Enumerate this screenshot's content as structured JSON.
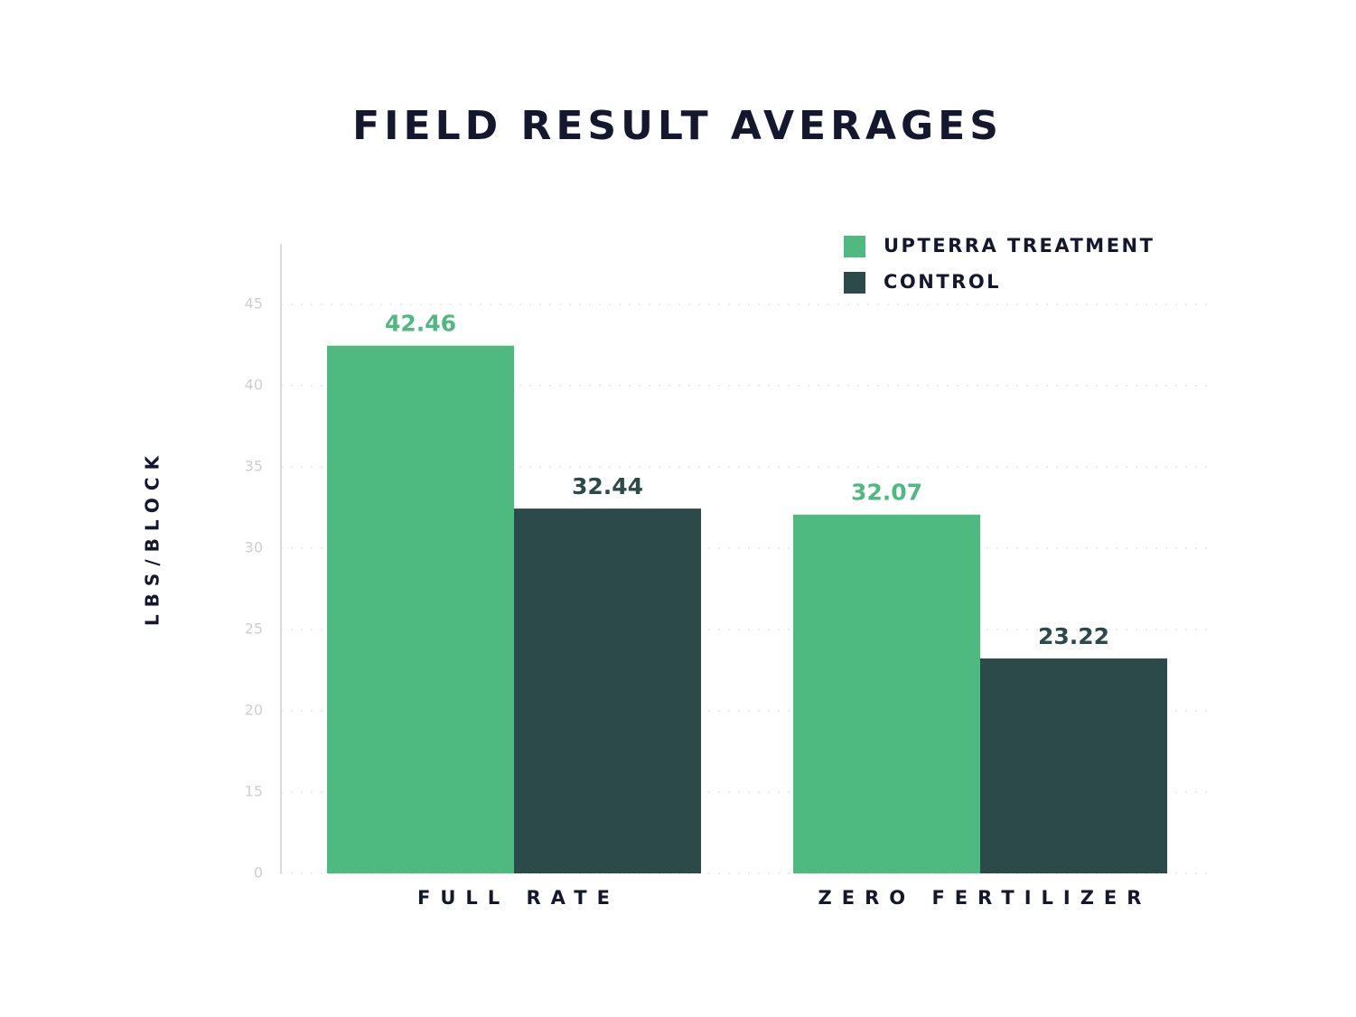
{
  "chart_data": {
    "type": "bar",
    "title": "FIELD RESULT AVERAGES",
    "y_label": "LBS/BLOCK",
    "categories": [
      "FULL RATE",
      "ZERO FERTILIZER"
    ],
    "series": [
      {
        "name": "UPTERRA TREATMENT",
        "color": "#4fba80",
        "values": [
          42.46,
          32.07
        ]
      },
      {
        "name": "CONTROL",
        "color": "#2c4a4a",
        "values": [
          32.44,
          23.22
        ]
      }
    ],
    "ylim": [
      10,
      49
    ],
    "yticks": [
      {
        "value": 10,
        "label": "0"
      },
      15,
      20,
      25,
      30,
      35,
      40,
      45
    ],
    "grid": true,
    "legend": "upper right"
  }
}
